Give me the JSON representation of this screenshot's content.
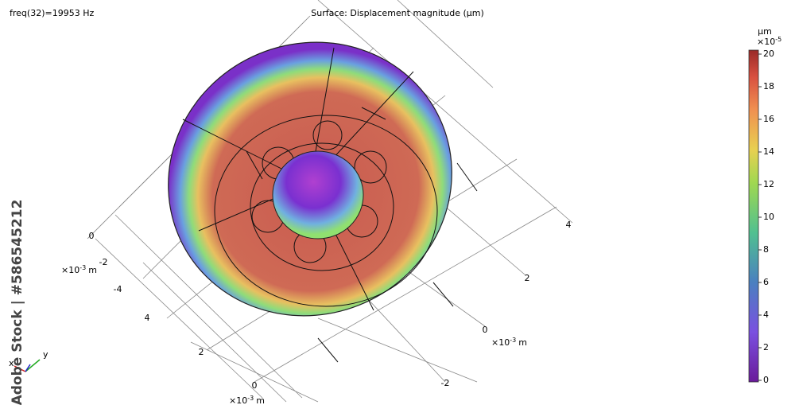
{
  "header": {
    "left": "freq(32)=19953 Hz",
    "title": "Surface: Displacement magnitude (µm)"
  },
  "colorbar": {
    "unit": "µm",
    "scale": "×10",
    "exponent": "-5",
    "lim": [
      0,
      20
    ],
    "ticks": [
      0,
      2,
      4,
      6,
      8,
      10,
      12,
      14,
      16,
      18,
      20
    ]
  },
  "axes": [
    {
      "ticks": [
        "0",
        "-2",
        "-4"
      ],
      "unit": {
        "scale": "×10",
        "exponent": "-3",
        "name": "m"
      }
    },
    {
      "ticks": [
        "4",
        "2",
        "0"
      ],
      "unit": {
        "scale": "×10",
        "exponent": "-3",
        "name": "m"
      }
    },
    {
      "ticks": [
        "4",
        "2",
        "0",
        "-2"
      ],
      "unit": {
        "scale": "×10",
        "exponent": "-3",
        "name": "m"
      }
    }
  ],
  "triad": {
    "x": "x",
    "y": "y"
  },
  "watermark": "Adobe Stock | #586545212"
}
